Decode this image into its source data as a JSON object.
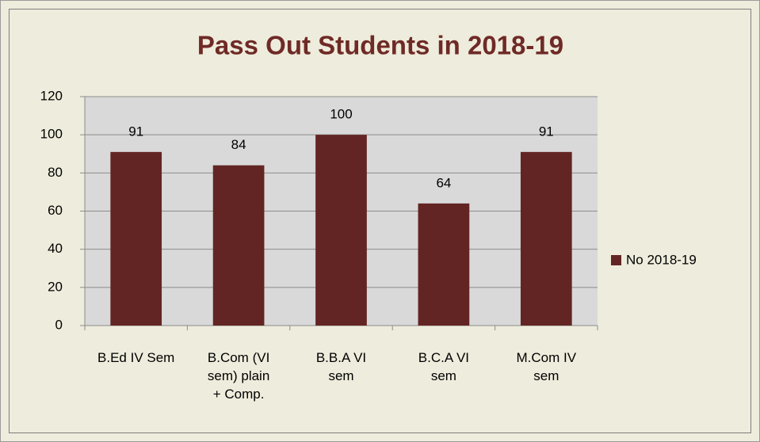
{
  "chart_data": {
    "type": "bar",
    "title": "Pass Out Students in 2018-19",
    "categories": [
      "B.Ed IV Sem",
      "B.Com (VI\nsem) plain\n+ Comp.",
      "B.B.A VI\nsem",
      "B.C.A VI\nsem",
      "M.Com IV\nsem"
    ],
    "series": [
      {
        "name": "No 2018-19",
        "color": "#632523",
        "values": [
          91,
          84,
          100,
          64,
          91
        ]
      }
    ],
    "ylim": [
      0,
      120
    ],
    "yticks": [
      0,
      20,
      40,
      60,
      80,
      100,
      120
    ],
    "grid": true,
    "legend": "right"
  }
}
